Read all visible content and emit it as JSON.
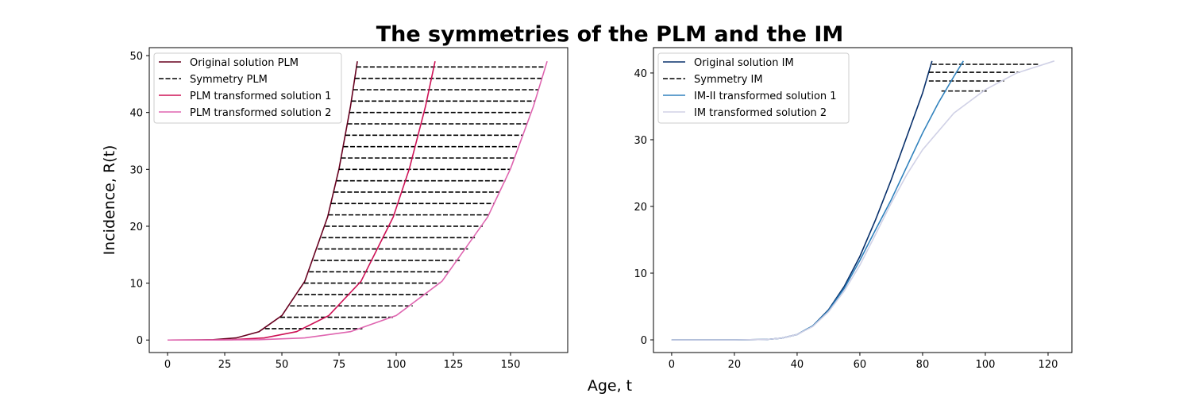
{
  "title": "The symmetries of the PLM and the IM",
  "xlabel": "Age, t",
  "chart_data": [
    {
      "type": "line",
      "ylabel": "Incidence, R(t)",
      "legend": "upper left",
      "xlim": [
        -8,
        175
      ],
      "ylim": [
        -2.2,
        51.4
      ],
      "xticks": [
        0,
        25,
        50,
        75,
        100,
        125,
        150
      ],
      "yticks": [
        0,
        10,
        20,
        30,
        40,
        50
      ],
      "series": [
        {
          "name": "Original solution PLM",
          "color": "#67001f",
          "style": "solid",
          "x": [
            0,
            10,
            20,
            30,
            40,
            50,
            60,
            70,
            75,
            80,
            83
          ],
          "values": [
            0,
            0.002,
            0.053,
            0.37,
            1.47,
            4.3,
            10.32,
            21.63,
            30.12,
            41.07,
            49
          ]
        },
        {
          "name": "Symmetry PLM",
          "color": "#000000",
          "style": "dashed",
          "x": [
            42.6,
            85.2,
            null,
            49.3,
            98.6,
            null,
            53.6,
            107.2,
            null,
            56.9,
            113.8,
            null,
            59.6,
            119.2,
            null,
            61.9,
            123.8,
            null,
            63.9,
            127.8,
            null,
            65.7,
            131.4,
            null,
            67.4,
            134.8,
            null,
            68.9,
            137.8,
            null,
            70.3,
            140.6,
            null,
            71.5,
            143.0,
            null,
            72.7,
            145.4,
            null,
            73.9,
            147.8,
            null,
            74.9,
            149.8,
            null,
            75.9,
            151.8,
            null,
            76.9,
            153.8,
            null,
            77.8,
            155.6,
            null,
            78.7,
            157.4,
            null,
            79.6,
            159.2,
            null,
            80.4,
            160.8,
            null,
            81.2,
            162.4,
            null,
            81.9,
            163.8,
            null,
            82.6,
            165.2
          ],
          "values": [
            2,
            2,
            null,
            4,
            4,
            null,
            6,
            6,
            null,
            8,
            8,
            null,
            10,
            10,
            null,
            12,
            12,
            null,
            14,
            14,
            null,
            16,
            16,
            null,
            18,
            18,
            null,
            20,
            20,
            null,
            22,
            22,
            null,
            24,
            24,
            null,
            26,
            26,
            null,
            28,
            28,
            null,
            30,
            30,
            null,
            32,
            32,
            null,
            34,
            34,
            null,
            36,
            36,
            null,
            38,
            38,
            null,
            40,
            40,
            null,
            42,
            42,
            null,
            44,
            44,
            null,
            46,
            46,
            null,
            48,
            48
          ]
        },
        {
          "name": "PLM transformed solution 1",
          "color": "#ce1256",
          "style": "solid",
          "x": [
            0,
            14.1,
            28.2,
            42.3,
            56.4,
            70.5,
            84.6,
            98.7,
            105.75,
            112.8,
            117
          ],
          "values": [
            0,
            0.002,
            0.053,
            0.37,
            1.47,
            4.3,
            10.32,
            21.63,
            30.12,
            41.07,
            49
          ]
        },
        {
          "name": "PLM transformed solution 2",
          "color": "#df65b0",
          "style": "solid",
          "x": [
            0,
            20,
            40,
            60,
            80,
            100,
            120,
            140,
            150,
            160,
            166
          ],
          "values": [
            0,
            0.002,
            0.053,
            0.37,
            1.47,
            4.3,
            10.32,
            21.63,
            30.12,
            41.07,
            49
          ]
        }
      ]
    },
    {
      "type": "line",
      "legend": "upper left",
      "xlim": [
        -5.8,
        127.6
      ],
      "ylim": [
        -1.9,
        43.8
      ],
      "xticks": [
        0,
        20,
        40,
        60,
        80,
        100,
        120
      ],
      "yticks": [
        0,
        10,
        20,
        30,
        40
      ],
      "series": [
        {
          "name": "Original solution IM",
          "color": "#08306b",
          "style": "solid",
          "x": [
            0,
            10,
            20,
            30,
            35,
            40,
            45,
            50,
            55,
            60,
            65,
            70,
            75,
            80,
            83
          ],
          "values": [
            0,
            0,
            0,
            0.05,
            0.25,
            0.8,
            2.1,
            4.5,
            8,
            12.5,
            18,
            24,
            30.5,
            37,
            41.8
          ]
        },
        {
          "name": "Symmetry IM",
          "color": "#000000",
          "style": "dashed",
          "x": [
            83,
            117,
            null,
            82,
            111,
            null,
            82,
            106,
            null,
            86,
            101
          ],
          "values": [
            41.3,
            41.3,
            null,
            40.1,
            40.1,
            null,
            38.8,
            38.8,
            null,
            37.3,
            37.3
          ]
        },
        {
          "name": "IM-II transformed solution 1",
          "color": "#3182bd",
          "style": "solid",
          "x": [
            0,
            10,
            20,
            30,
            35,
            40,
            45,
            50,
            55,
            60,
            65,
            70,
            75,
            80,
            85,
            90,
            93
          ],
          "values": [
            0,
            0,
            0,
            0.05,
            0.25,
            0.8,
            2.1,
            4.4,
            7.7,
            11.9,
            16.5,
            21,
            26,
            31,
            35.5,
            39.5,
            41.8
          ]
        },
        {
          "name": "IM transformed solution 2",
          "color": "#d0d1e6",
          "style": "solid",
          "x": [
            0,
            10,
            20,
            30,
            35,
            40,
            45,
            50,
            55,
            60,
            65,
            70,
            75,
            80,
            90,
            100,
            110,
            122
          ],
          "values": [
            0,
            0,
            0,
            0.05,
            0.25,
            0.8,
            2.0,
            4.2,
            7.3,
            11.2,
            15.8,
            20.5,
            24.8,
            28.5,
            34,
            37.5,
            40,
            41.8
          ]
        }
      ]
    }
  ]
}
